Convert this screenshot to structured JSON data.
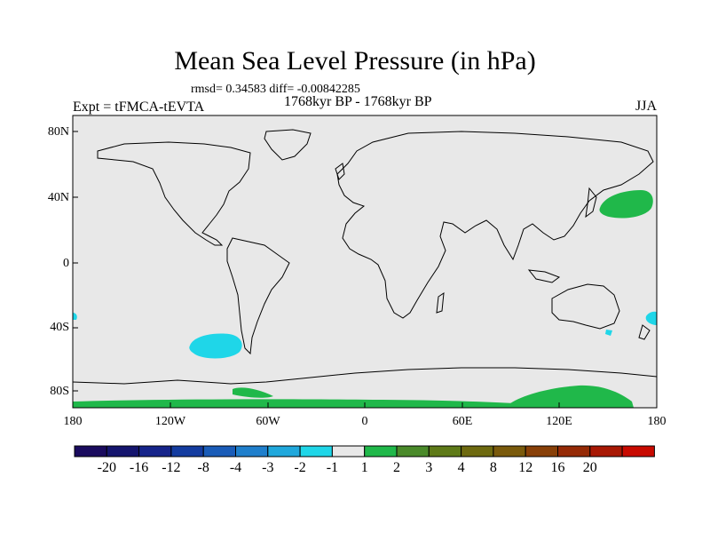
{
  "title": "Mean Sea Level Pressure (in hPa)",
  "stats": "rmsd= 0.34583  diff= -0.00842285",
  "period": "1768kyr BP - 1768kyr BP",
  "experiment": "Expt = tFMCA-tEVTA",
  "season": "JJA",
  "lat_labels": [
    "80N",
    "40N",
    "0",
    "40S",
    "80S"
  ],
  "lon_labels": [
    "180",
    "120W",
    "60W",
    "0",
    "60E",
    "120E",
    "180"
  ],
  "colorbar": {
    "colors": [
      "#1a0b5e",
      "#15156e",
      "#16248a",
      "#143ca0",
      "#1a5cb8",
      "#1f7fcc",
      "#20a8dc",
      "#1fd6e8",
      "#e8e8e8",
      "#20b84a",
      "#4a8a2a",
      "#5e7a18",
      "#6e6a10",
      "#7a5a0c",
      "#884008",
      "#952a06",
      "#a81804",
      "#c80a00"
    ],
    "labels": [
      "-20",
      "-16",
      "-12",
      "-8",
      "-4",
      "-3",
      "-2",
      "-1",
      "1",
      "2",
      "3",
      "4",
      "8",
      "12",
      "16",
      "20"
    ]
  },
  "colors": {
    "background": "#e8e8e8",
    "positive": "#20b84a",
    "negative": "#1fd6e8"
  }
}
